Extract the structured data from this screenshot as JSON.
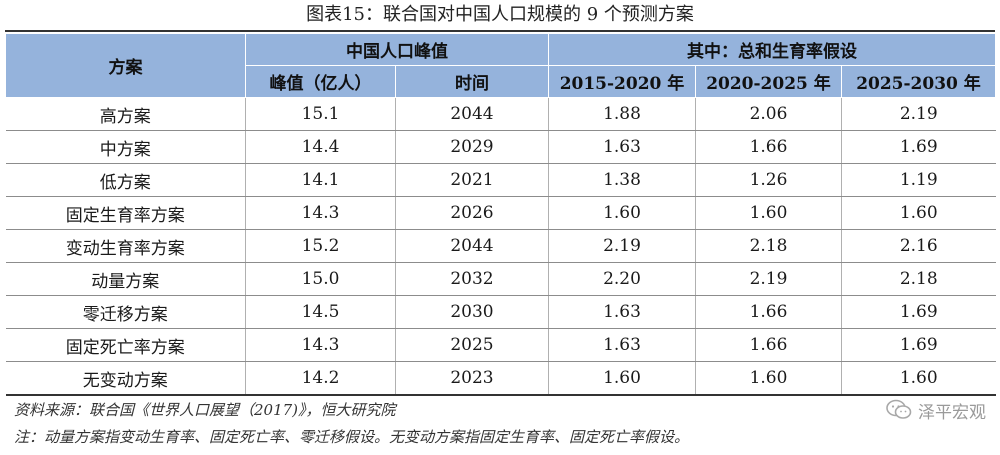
{
  "title": "图表15：联合国对中国人口规模的 9 个预测方案",
  "header": {
    "scenario": "方案",
    "peak_group": "中国人口峰值",
    "tfr_group": "其中：总和生育率假设",
    "peak_value": "峰值（亿人）",
    "peak_time": "时间",
    "p1": "2015-2020 年",
    "p2": "2020-2025 年",
    "p3": "2025-2030 年"
  },
  "rows": [
    {
      "name": "高方案",
      "peak": "15.1",
      "year": "2044",
      "t1": "1.88",
      "t2": "2.06",
      "t3": "2.19"
    },
    {
      "name": "中方案",
      "peak": "14.4",
      "year": "2029",
      "t1": "1.63",
      "t2": "1.66",
      "t3": "1.69"
    },
    {
      "name": "低方案",
      "peak": "14.1",
      "year": "2021",
      "t1": "1.38",
      "t2": "1.26",
      "t3": "1.19"
    },
    {
      "name": "固定生育率方案",
      "peak": "14.3",
      "year": "2026",
      "t1": "1.60",
      "t2": "1.60",
      "t3": "1.60"
    },
    {
      "name": "变动生育率方案",
      "peak": "15.2",
      "year": "2044",
      "t1": "2.19",
      "t2": "2.18",
      "t3": "2.16"
    },
    {
      "name": "动量方案",
      "peak": "15.0",
      "year": "2032",
      "t1": "2.20",
      "t2": "2.19",
      "t3": "2.18"
    },
    {
      "name": "零迁移方案",
      "peak": "14.5",
      "year": "2030",
      "t1": "1.63",
      "t2": "1.66",
      "t3": "1.69"
    },
    {
      "name": "固定死亡率方案",
      "peak": "14.3",
      "year": "2025",
      "t1": "1.63",
      "t2": "1.66",
      "t3": "1.69"
    },
    {
      "name": "无变动方案",
      "peak": "14.2",
      "year": "2023",
      "t1": "1.60",
      "t2": "1.60",
      "t3": "1.60"
    }
  ],
  "source": "资料来源：联合国《世界人口展望（2017)》，恒大研究院",
  "note": "注：动量方案指变动生育率、固定死亡率、零迁移假设。无变动方案指固定生育率、固定死亡率假设。",
  "watermark": {
    "text": "泽平宏观",
    "icon": "wechat-icon"
  }
}
